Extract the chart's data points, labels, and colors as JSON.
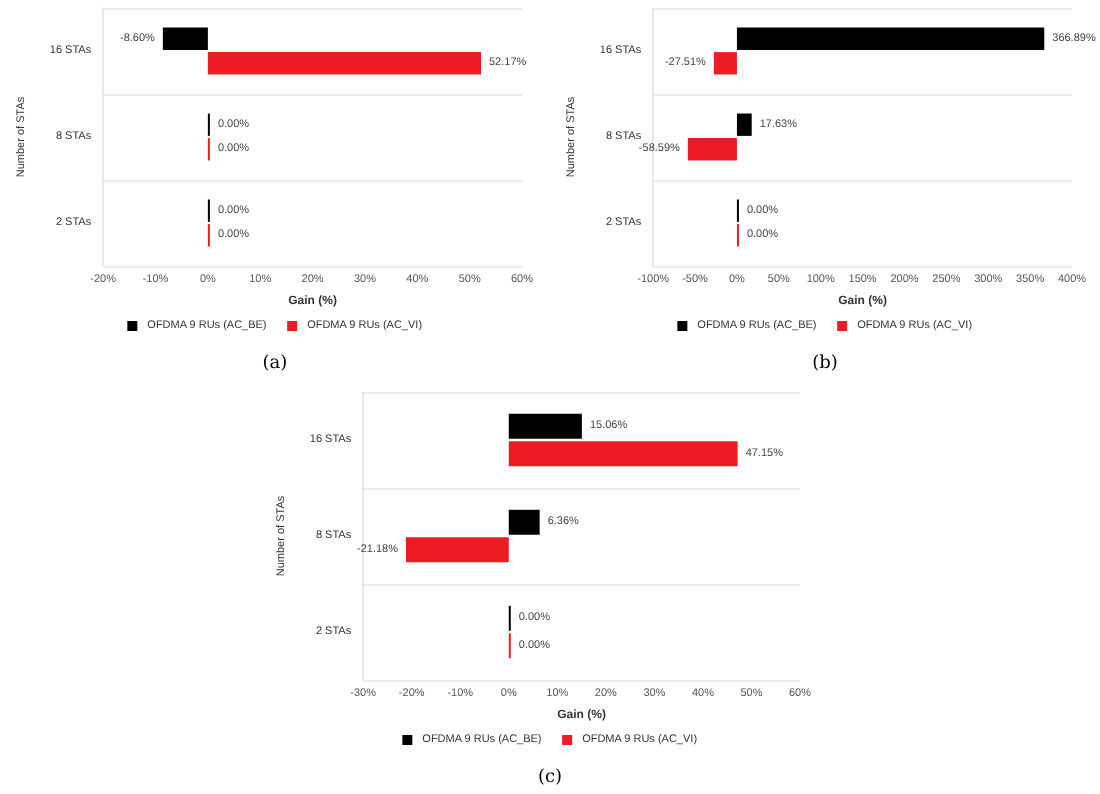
{
  "chart_data": [
    {
      "type": "bar",
      "orientation": "horizontal",
      "xlabel": "Gain (%)",
      "ylabel": "Number of STAs",
      "categories": [
        "16 STAs",
        "8 STAs",
        "2 STAs"
      ],
      "series": [
        {
          "name": "OFDMA 9 RUs (AC_BE)",
          "color": "#000000",
          "values": [
            -8.6,
            0,
            0
          ],
          "value_labels": [
            "-8.60%",
            "0.00%",
            "0.00%"
          ]
        },
        {
          "name": "OFDMA 9 RUs (AC_VI)",
          "color": "#ed1c24",
          "values": [
            52.17,
            0,
            0
          ],
          "value_labels": [
            "52.17%",
            "0.00%",
            "0.00%"
          ]
        }
      ],
      "xlim": [
        -20,
        60
      ],
      "xticks": [
        {
          "value": -20,
          "label": "-20%"
        },
        {
          "value": -10,
          "label": "-10%"
        },
        {
          "value": 0,
          "label": "0%"
        },
        {
          "value": 10,
          "label": "10%"
        },
        {
          "value": 20,
          "label": "20%"
        },
        {
          "value": 30,
          "label": "30%"
        },
        {
          "value": 40,
          "label": "40%"
        },
        {
          "value": 50,
          "label": "50%"
        },
        {
          "value": 60,
          "label": "60%"
        }
      ],
      "grid": "y",
      "legend": "bottom",
      "annotations": [
        "(a)"
      ]
    },
    {
      "type": "bar",
      "orientation": "horizontal",
      "xlabel": "Gain (%)",
      "ylabel": "Number of STAs",
      "categories": [
        "16 STAs",
        "8 STAs",
        "2 STAs"
      ],
      "series": [
        {
          "name": "OFDMA 9 RUs (AC_BE)",
          "color": "#000000",
          "values": [
            366.89,
            17.63,
            0
          ],
          "value_labels": [
            "366.89%",
            "17.63%",
            "0.00%"
          ]
        },
        {
          "name": "OFDMA 9 RUs (AC_VI)",
          "color": "#ed1c24",
          "values": [
            -27.51,
            -58.59,
            0
          ],
          "value_labels": [
            "-27.51%",
            "-58.59%",
            "0.00%"
          ]
        }
      ],
      "xlim": [
        -100,
        400
      ],
      "xticks": [
        {
          "value": -100,
          "label": "-100%"
        },
        {
          "value": -50,
          "label": "-50%"
        },
        {
          "value": 0,
          "label": "0%"
        },
        {
          "value": 50,
          "label": "50%"
        },
        {
          "value": 100,
          "label": "100%"
        },
        {
          "value": 150,
          "label": "150%"
        },
        {
          "value": 200,
          "label": "200%"
        },
        {
          "value": 250,
          "label": "250%"
        },
        {
          "value": 300,
          "label": "300%"
        },
        {
          "value": 350,
          "label": "350%"
        },
        {
          "value": 400,
          "label": "400%"
        }
      ],
      "grid": "y",
      "legend": "bottom",
      "annotations": [
        "(b)"
      ]
    },
    {
      "type": "bar",
      "orientation": "horizontal",
      "xlabel": "Gain (%)",
      "ylabel": "Number of STAs",
      "categories": [
        "16 STAs",
        "8 STAs",
        "2 STAs"
      ],
      "series": [
        {
          "name": "OFDMA 9 RUs (AC_BE)",
          "color": "#000000",
          "values": [
            15.06,
            6.36,
            0
          ],
          "value_labels": [
            "15.06%",
            "6.36%",
            "0.00%"
          ]
        },
        {
          "name": "OFDMA 9 RUs (AC_VI)",
          "color": "#ed1c24",
          "values": [
            47.15,
            -21.18,
            0
          ],
          "value_labels": [
            "47.15%",
            "-21.18%",
            "0.00%"
          ]
        }
      ],
      "xlim": [
        -30,
        60
      ],
      "xticks": [
        {
          "value": -30,
          "label": "-30%"
        },
        {
          "value": -20,
          "label": "-20%"
        },
        {
          "value": -10,
          "label": "-10%"
        },
        {
          "value": 0,
          "label": "0%"
        },
        {
          "value": 10,
          "label": "10%"
        },
        {
          "value": 20,
          "label": "20%"
        },
        {
          "value": 30,
          "label": "30%"
        },
        {
          "value": 40,
          "label": "40%"
        },
        {
          "value": 50,
          "label": "50%"
        },
        {
          "value": 60,
          "label": "60%"
        }
      ],
      "grid": "y",
      "legend": "bottom",
      "annotations": [
        "(c)"
      ]
    }
  ]
}
